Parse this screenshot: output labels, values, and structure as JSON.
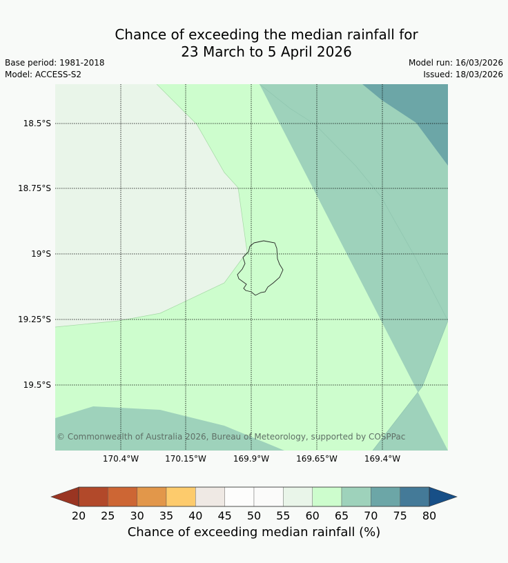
{
  "title_line1": "Chance of exceeding the median rainfall for",
  "title_line2": "23 March to 5 April 2026",
  "base_period": "Base period: 1981-2018",
  "model": "Model: ACCESS-S2",
  "model_run": "Model run: 16/03/2026",
  "issued": "Issued: 18/03/2026",
  "copyright": "© Commonwealth of Australia 2026, Bureau of Meteorology, supported by COSPPac",
  "lat_labels": [
    "18.5°S",
    "18.75°S",
    "19°S",
    "19.25°S",
    "19.5°S"
  ],
  "lon_labels": [
    "170.4°W",
    "170.15°W",
    "169.9°W",
    "169.65°W",
    "169.4°W"
  ],
  "colorbar": {
    "title": "Chance of exceeding median rainfall (%)",
    "ticks": [
      "20",
      "25",
      "30",
      "35",
      "40",
      "45",
      "50",
      "55",
      "60",
      "65",
      "70",
      "75",
      "80"
    ],
    "colors": [
      "#b2492a",
      "#cd6634",
      "#e2974a",
      "#fdcb6c",
      "#efe9e4",
      "#fdfdfc",
      "#fbfbfa",
      "#e9f5e9",
      "#cdfdcd",
      "#9ed2bb",
      "#6ca6a7",
      "#447a98"
    ],
    "under_color": "#9a3522",
    "over_color": "#174f87"
  },
  "zone_colors": {
    "c50_60": "#e9f5e9",
    "c60_65": "#cdfdcd",
    "c65_70": "#9ed2bb",
    "c70_75": "#6ca6a7"
  }
}
